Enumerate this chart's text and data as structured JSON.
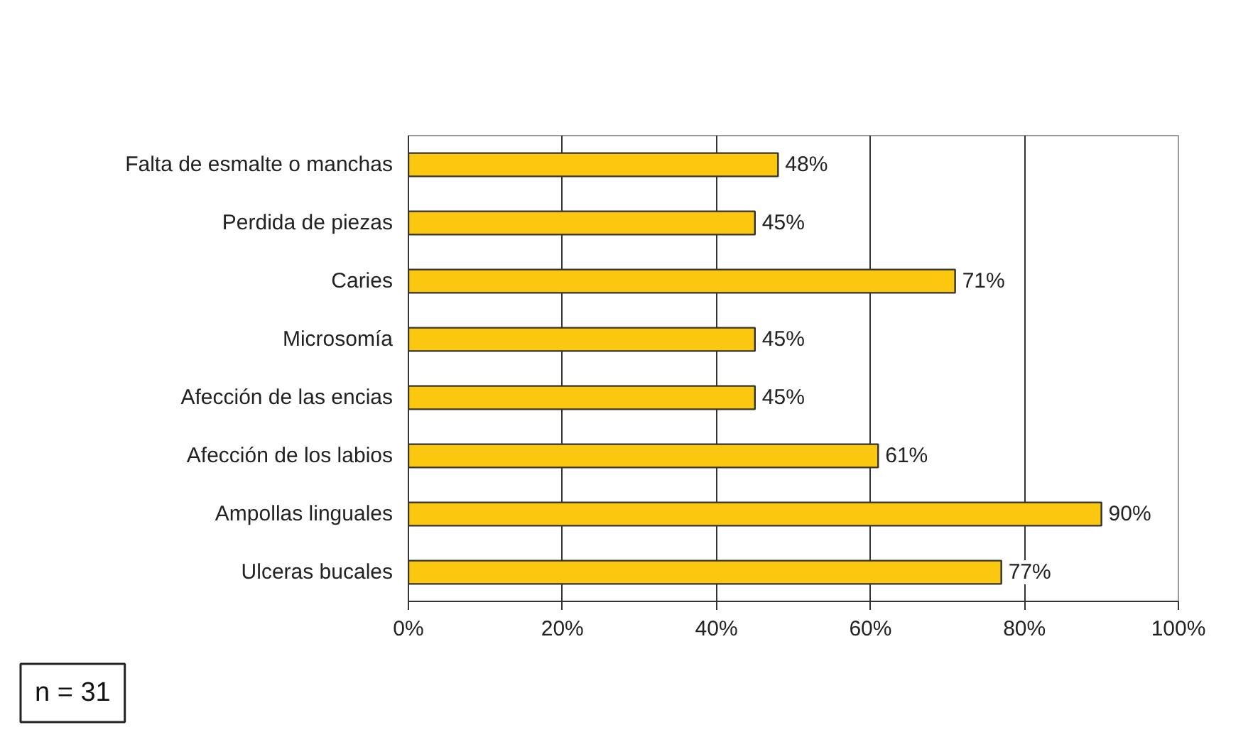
{
  "chart_data": {
    "type": "bar",
    "orientation": "horizontal",
    "categories": [
      "Falta de esmalte o manchas",
      "Perdida de piezas",
      "Caries",
      "Microsomía",
      "Afección de las encias",
      "Afección de los labios",
      "Ampollas linguales",
      "Ulceras bucales"
    ],
    "values": [
      48,
      45,
      71,
      45,
      45,
      61,
      90,
      77
    ],
    "value_labels": [
      "48%",
      "45%",
      "71%",
      "45%",
      "45%",
      "61%",
      "90%",
      "77%"
    ],
    "color": "#fcc80f",
    "xlim": [
      0,
      100
    ],
    "xticks": [
      {
        "value": 0,
        "label": "0%"
      },
      {
        "value": 20,
        "label": "20%"
      },
      {
        "value": 40,
        "label": "40%"
      },
      {
        "value": 60,
        "label": "60%"
      },
      {
        "value": 80,
        "label": "80%"
      },
      {
        "value": 100,
        "label": "100%"
      }
    ],
    "grid": "x",
    "annotations": [
      "n = 31"
    ]
  }
}
